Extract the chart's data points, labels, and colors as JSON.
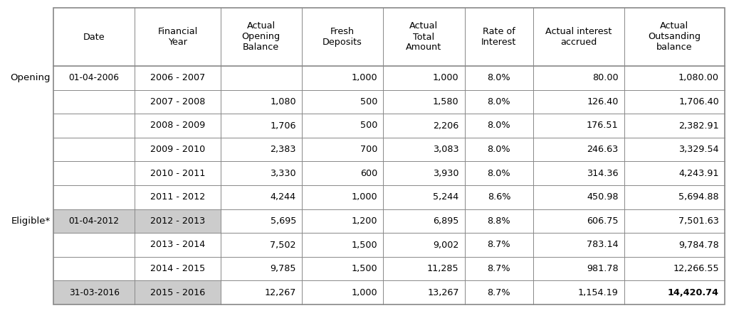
{
  "col_headers": [
    "Date",
    "Financial\nYear",
    "Actual\nOpening\nBalance",
    "Fresh\nDeposits",
    "Actual\nTotal\nAmount",
    "Rate of\nInterest",
    "Actual interest\naccrued",
    "Actual\nOutsanding\nbalance"
  ],
  "row_labels_map": {
    "0": "Opening",
    "6": "Eligible*"
  },
  "row_dates": [
    "01-04-2006",
    "",
    "",
    "",
    "",
    "",
    "01-04-2012",
    "",
    "",
    "31-03-2016"
  ],
  "rows": [
    [
      "2006 - 2007",
      "",
      "1,000",
      "1,000",
      "8.0%",
      "80.00",
      "1,080.00"
    ],
    [
      "2007 - 2008",
      "1,080",
      "500",
      "1,580",
      "8.0%",
      "126.40",
      "1,706.40"
    ],
    [
      "2008 - 2009",
      "1,706",
      "500",
      "2,206",
      "8.0%",
      "176.51",
      "2,382.91"
    ],
    [
      "2009 - 2010",
      "2,383",
      "700",
      "3,083",
      "8.0%",
      "246.63",
      "3,329.54"
    ],
    [
      "2010 - 2011",
      "3,330",
      "600",
      "3,930",
      "8.0%",
      "314.36",
      "4,243.91"
    ],
    [
      "2011 - 2012",
      "4,244",
      "1,000",
      "5,244",
      "8.6%",
      "450.98",
      "5,694.88"
    ],
    [
      "2012 - 2013",
      "5,695",
      "1,200",
      "6,895",
      "8.8%",
      "606.75",
      "7,501.63"
    ],
    [
      "2013 - 2014",
      "7,502",
      "1,500",
      "9,002",
      "8.7%",
      "783.14",
      "9,784.78"
    ],
    [
      "2014 - 2015",
      "9,785",
      "1,500",
      "11,285",
      "8.7%",
      "981.78",
      "12,266.55"
    ],
    [
      "2015 - 2016",
      "12,267",
      "1,000",
      "13,267",
      "8.7%",
      "1,154.19",
      "14,420.74"
    ]
  ],
  "highlighted_rows": [
    6,
    9
  ],
  "bg_color": "#ffffff",
  "grid_color": "#888888",
  "highlight_color": "#cccccc",
  "font_color": "#000000",
  "font_size": 9.2,
  "date_font_size": 8.8,
  "label_font_size": 9.5
}
